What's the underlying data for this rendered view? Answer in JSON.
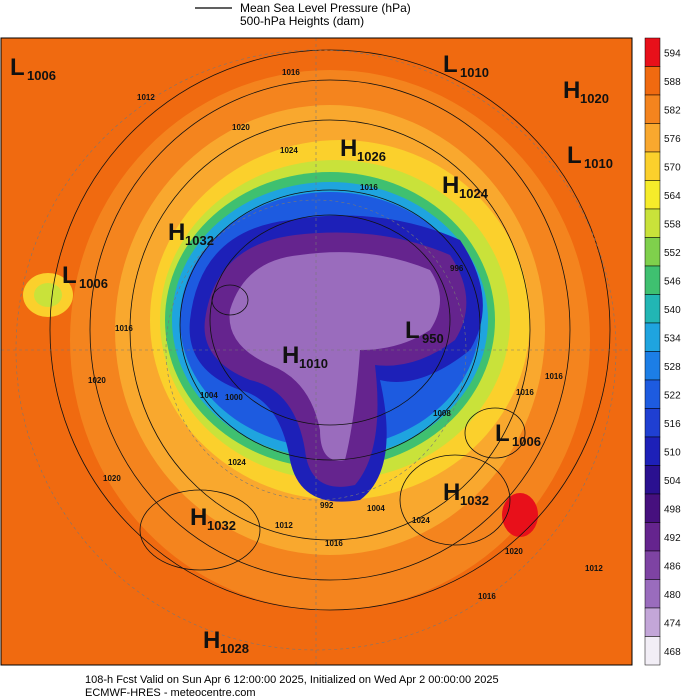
{
  "header": {
    "legend": [
      "Mean Sea Level Pressure (hPa)",
      "500-hPa Heights (dam)"
    ]
  },
  "map": {
    "centers": [
      {
        "letter": "L",
        "value": 1006
      },
      {
        "letter": "L",
        "value": 1010
      },
      {
        "letter": "H",
        "value": 1020
      },
      {
        "letter": "H",
        "value": 1026
      },
      {
        "letter": "L",
        "value": 1010
      },
      {
        "letter": "H",
        "value": 1024
      },
      {
        "letter": "H",
        "value": 1032
      },
      {
        "letter": "L",
        "value": 1006
      },
      {
        "letter": "L",
        "value": 950
      },
      {
        "letter": "H",
        "value": 1010
      },
      {
        "letter": "L",
        "value": 1006
      },
      {
        "letter": "H",
        "value": 1032
      },
      {
        "letter": "H",
        "value": 1032
      },
      {
        "letter": "H",
        "value": 1028
      }
    ],
    "isobar_labels": [
      1016,
      1012,
      1020,
      1024,
      1016,
      1016,
      1020,
      1016,
      1016,
      1024,
      1020,
      1024,
      1020,
      1016,
      1016,
      1012,
      1012,
      1004,
      1000,
      1004,
      1008,
      992,
      996
    ]
  },
  "colorbar": {
    "levels": [
      594,
      588,
      582,
      576,
      570,
      564,
      558,
      552,
      546,
      540,
      534,
      528,
      522,
      516,
      510,
      504,
      498,
      492,
      486,
      480,
      474,
      468
    ],
    "colors": [
      "#e8101a",
      "#f06a10",
      "#f4841e",
      "#f9a82e",
      "#fbd02c",
      "#f6ec2a",
      "#c9e23a",
      "#7fd04c",
      "#3fc070",
      "#22b6b4",
      "#1fa4df",
      "#1c7ee6",
      "#1d5be0",
      "#1f3fd2",
      "#1d20b8",
      "#2a1090",
      "#46107e",
      "#65248e",
      "#7e43a3",
      "#9a6cbd",
      "#c3a6d8",
      "#f2eef6"
    ]
  },
  "footer": {
    "lines": [
      "108-h Fcst Valid on Sun Apr  6 12:00:00 2025, Initialized on Wed Apr  2 00:00:00 2025",
      "ECMWF-HRES  - meteocentre.com"
    ]
  }
}
